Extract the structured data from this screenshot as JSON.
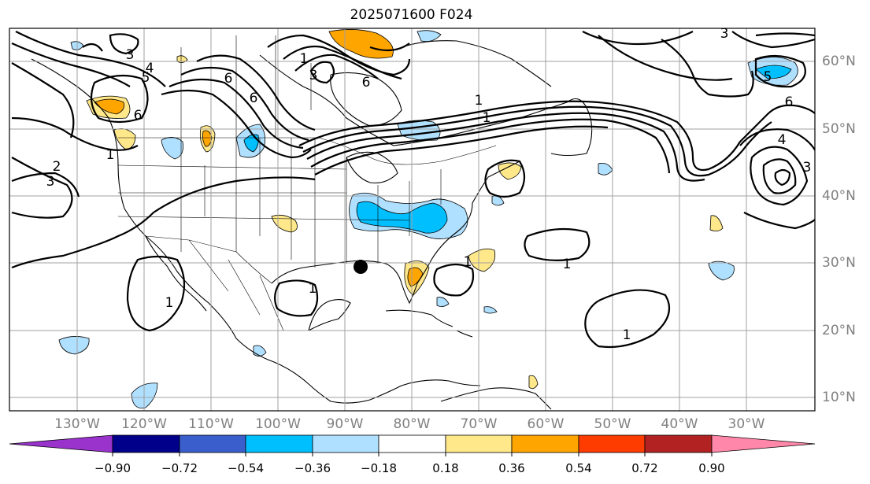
{
  "title": "2025071600 F024",
  "lat_labels": [
    "60°N",
    "50°N",
    "40°N",
    "30°N",
    "20°N",
    "10°N"
  ],
  "lon_labels": [
    "130°W",
    "120°W",
    "110°W",
    "100°W",
    "90°W",
    "80°W",
    "70°W",
    "60°W",
    "50°W",
    "40°W",
    "30°W"
  ],
  "contour_labels": [
    "1",
    "1",
    "1",
    "1",
    "1",
    "1",
    "1",
    "1",
    "1",
    "2",
    "3",
    "3",
    "3",
    "3",
    "3",
    "4",
    "4",
    "5",
    "5",
    "6",
    "6",
    "6",
    "6",
    "6"
  ],
  "colorbar": {
    "tick_labels": [
      "−0.90",
      "−0.72",
      "−0.54",
      "−0.36",
      "−0.18",
      "0.18",
      "0.36",
      "0.54",
      "0.72",
      "0.90"
    ],
    "colors": [
      "#9933cc",
      "#00008b",
      "#3a5fcd",
      "#00bfff",
      "#b0e0ff",
      "#ffffff",
      "#ffe88a",
      "#ffa500",
      "#ff3c00",
      "#b22222",
      "#ff88aa"
    ],
    "under_color": "#9933cc",
    "over_color": "#ff88aa"
  },
  "map_data": {
    "grid": "on",
    "marker": "black-dot-gulf-coast",
    "fill_colors": {
      "negative_light": "#b0e0ff",
      "negative_mid": "#00bfff",
      "positive_light": "#ffe88a",
      "positive_mid": "#ffa500"
    }
  }
}
